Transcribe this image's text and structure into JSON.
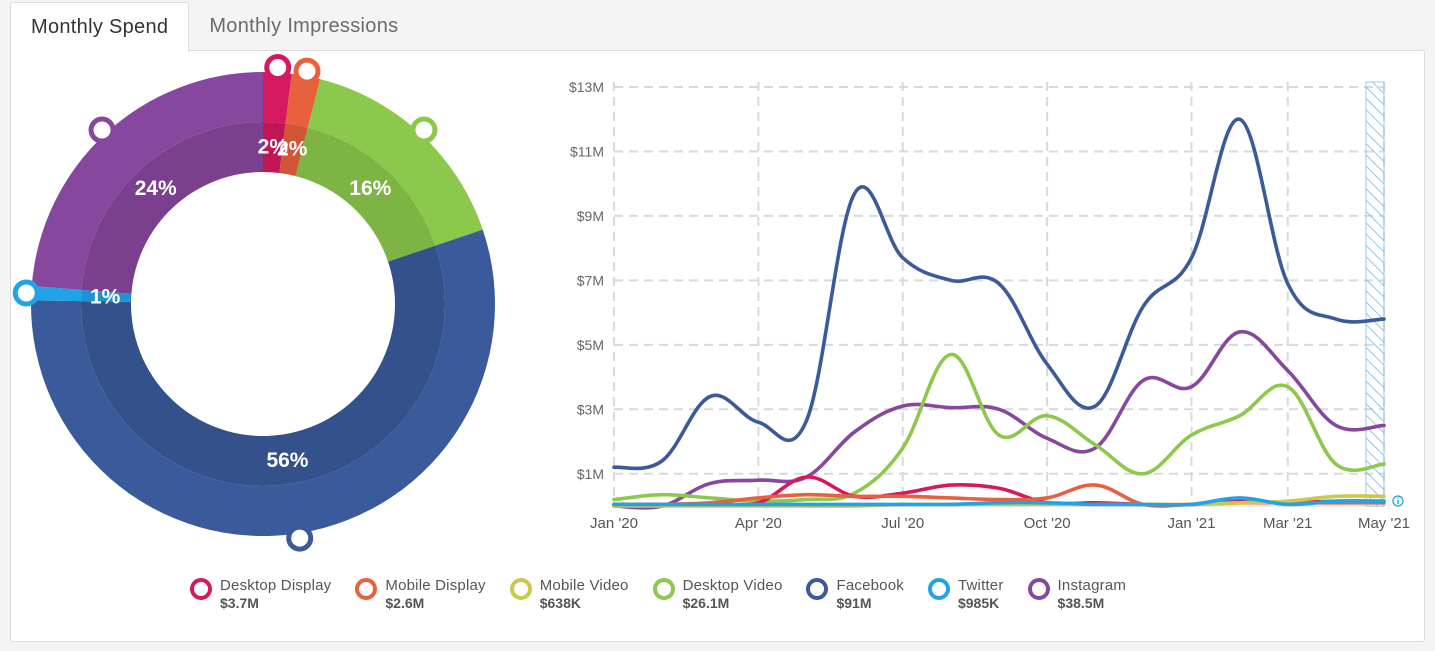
{
  "tabs": [
    {
      "label": "Monthly Spend"
    },
    {
      "label": "Monthly Impressions"
    }
  ],
  "colors": {
    "desktop_display": "#d6185f",
    "mobile_display": "#e8603c",
    "mobile_video": "#c9c94a",
    "desktop_video": "#8cc84b",
    "facebook": "#3a5a9b",
    "twitter": "#21a3e8",
    "instagram": "#87479e"
  },
  "legend": [
    {
      "key": "desktop_display",
      "name": "Desktop Display",
      "value": "$3.7M"
    },
    {
      "key": "mobile_display",
      "name": "Mobile Display",
      "value": "$2.6M"
    },
    {
      "key": "mobile_video",
      "name": "Mobile Video",
      "value": "$638K"
    },
    {
      "key": "desktop_video",
      "name": "Desktop Video",
      "value": "$26.1M"
    },
    {
      "key": "facebook",
      "name": "Facebook",
      "value": "$91M"
    },
    {
      "key": "twitter",
      "name": "Twitter",
      "value": "$985K"
    },
    {
      "key": "instagram",
      "name": "Instagram",
      "value": "$38.5M"
    }
  ],
  "chart_data": [
    {
      "type": "pie",
      "variant": "donut",
      "slices": [
        {
          "key": "desktop_display",
          "percent": 2,
          "label": "2%"
        },
        {
          "key": "mobile_display",
          "percent": 2,
          "label": "2%"
        },
        {
          "key": "desktop_video",
          "percent": 16,
          "label": "16%"
        },
        {
          "key": "facebook",
          "percent": 56,
          "label": "56%"
        },
        {
          "key": "twitter",
          "percent": 1,
          "label": "1%"
        },
        {
          "key": "instagram",
          "percent": 24,
          "label": "24%"
        }
      ]
    },
    {
      "type": "line",
      "x": [
        "Jan '20",
        "Feb '20",
        "Mar '20",
        "Apr '20",
        "May '20",
        "Jun '20",
        "Jul '20",
        "Aug '20",
        "Sep '20",
        "Oct '20",
        "Nov '20",
        "Dec '20",
        "Jan '21",
        "Feb '21",
        "Mar '21",
        "Apr '21",
        "May '21"
      ],
      "x_tick_labels": [
        "Jan '20",
        "Apr '20",
        "Jul '20",
        "Oct '20",
        "Jan '21",
        "Mar '21",
        "May '21"
      ],
      "x_tick_index": [
        0,
        3,
        6,
        9,
        12,
        14,
        16
      ],
      "y_tick_labels": [
        "$1M",
        "$3M",
        "$5M",
        "$7M",
        "$9M",
        "$11M",
        "$13M"
      ],
      "y_tick_values": [
        1,
        3,
        5,
        7,
        9,
        11,
        13
      ],
      "ylim": [
        0,
        13
      ],
      "y_units": "$M",
      "grid": true,
      "series": [
        {
          "key": "facebook",
          "name": "Facebook",
          "values": [
            1.2,
            1.4,
            3.4,
            2.6,
            2.65,
            9.7,
            7.7,
            7.0,
            6.9,
            4.4,
            3.1,
            6.2,
            7.7,
            12.0,
            6.9,
            5.8,
            5.8
          ]
        },
        {
          "key": "instagram",
          "name": "Instagram",
          "values": [
            0,
            0,
            0.7,
            0.8,
            0.9,
            2.3,
            3.1,
            3.05,
            3.0,
            2.1,
            1.8,
            3.9,
            3.7,
            5.4,
            4.2,
            2.5,
            2.5
          ]
        },
        {
          "key": "desktop_video",
          "name": "Desktop Video",
          "values": [
            0.2,
            0.35,
            0.25,
            0.15,
            0.2,
            0.4,
            1.8,
            4.7,
            2.2,
            2.8,
            1.9,
            1.0,
            2.2,
            2.8,
            3.7,
            1.3,
            1.3
          ]
        },
        {
          "key": "desktop_display",
          "name": "Desktop Display",
          "values": [
            0.05,
            0.05,
            0.05,
            0.1,
            0.9,
            0.3,
            0.4,
            0.65,
            0.55,
            0.1,
            0.1,
            0.05,
            0.05,
            0.15,
            0.1,
            0.15,
            0.15
          ]
        },
        {
          "key": "mobile_display",
          "name": "Mobile Display",
          "values": [
            0.05,
            0.05,
            0.1,
            0.25,
            0.35,
            0.3,
            0.3,
            0.25,
            0.2,
            0.25,
            0.65,
            0.05,
            0.05,
            0.1,
            0.1,
            0.1,
            0.1
          ]
        },
        {
          "key": "mobile_video",
          "name": "Mobile Video",
          "values": [
            0,
            0,
            0,
            0,
            0,
            0,
            0.05,
            0.05,
            0.05,
            0.05,
            0.05,
            0.05,
            0.05,
            0.1,
            0.15,
            0.3,
            0.3
          ]
        },
        {
          "key": "twitter",
          "name": "Twitter",
          "values": [
            0.05,
            0.05,
            0.05,
            0.05,
            0.05,
            0.05,
            0.05,
            0.05,
            0.1,
            0.1,
            0.05,
            0.05,
            0.05,
            0.25,
            0.05,
            0.15,
            0.15
          ]
        }
      ]
    }
  ]
}
